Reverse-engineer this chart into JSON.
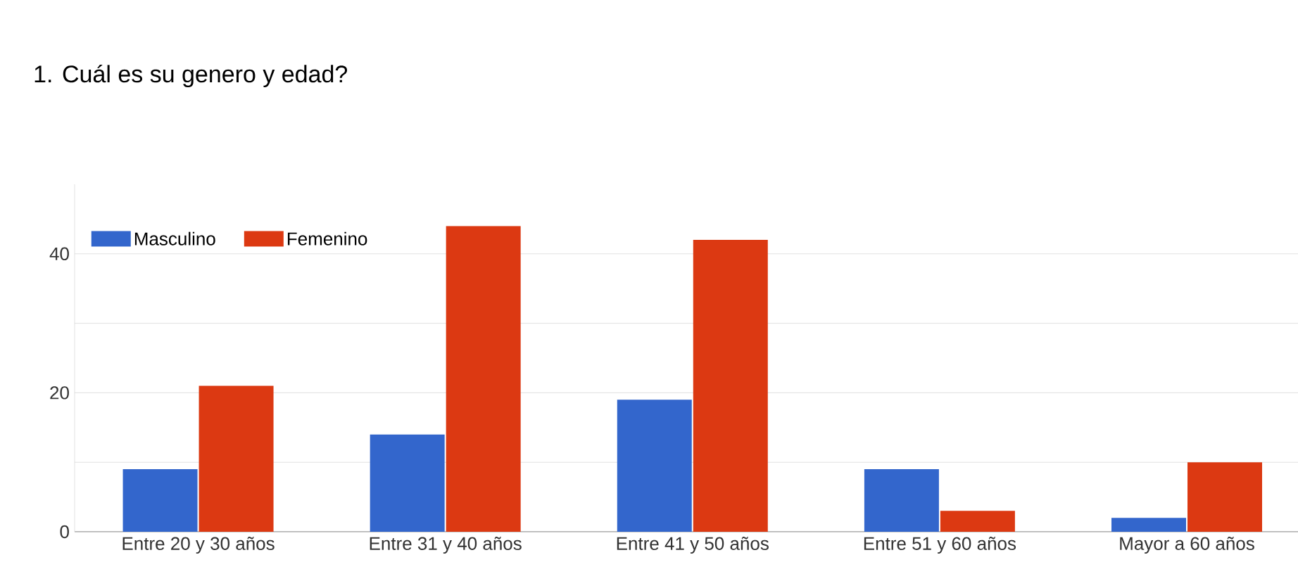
{
  "chart_data": {
    "type": "bar",
    "title": "1.    Cuál es su genero y edad?",
    "categories": [
      "Entre 20 y 30 años",
      "Entre 31 y 40 años",
      "Entre 41 y 50 años",
      "Entre 51 y 60 años",
      "Mayor a 60 años"
    ],
    "series": [
      {
        "name": "Masculino",
        "color": "#3366cc",
        "values": [
          9,
          14,
          19,
          9,
          2
        ]
      },
      {
        "name": "Femenino",
        "color": "#dc3912",
        "values": [
          21,
          44,
          42,
          3,
          10
        ]
      }
    ],
    "yticks": [
      0,
      {
        "value": 10,
        "label": null
      },
      20,
      {
        "value": 30,
        "label": null
      },
      40
    ],
    "ylim": [
      0,
      50
    ],
    "grid": "y",
    "legend": "top left"
  }
}
